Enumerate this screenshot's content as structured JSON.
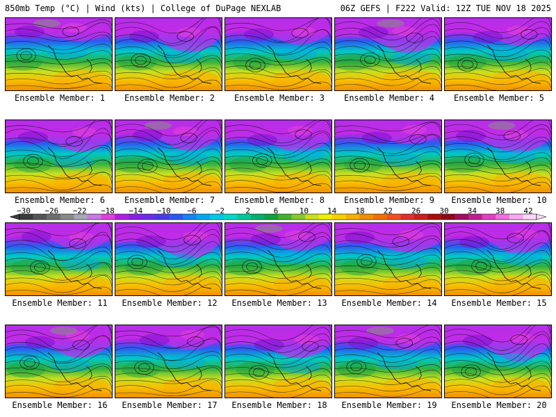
{
  "header": {
    "left": "850mb Temp (°C) | Wind (kts) | College of DuPage NEXLAB",
    "right": "06Z GEFS | F222 Valid: 12Z TUE NOV 18 2025"
  },
  "panels": [
    {
      "label": "Ensemble Member: 1"
    },
    {
      "label": "Ensemble Member: 2"
    },
    {
      "label": "Ensemble Member: 3"
    },
    {
      "label": "Ensemble Member: 4"
    },
    {
      "label": "Ensemble Member: 5"
    },
    {
      "label": "Ensemble Member: 6"
    },
    {
      "label": "Ensemble Member: 7"
    },
    {
      "label": "Ensemble Member: 8"
    },
    {
      "label": "Ensemble Member: 9"
    },
    {
      "label": "Ensemble Member: 10"
    },
    {
      "label": "Ensemble Member: 11"
    },
    {
      "label": "Ensemble Member: 12"
    },
    {
      "label": "Ensemble Member: 13"
    },
    {
      "label": "Ensemble Member: 14"
    },
    {
      "label": "Ensemble Member: 15"
    },
    {
      "label": "Ensemble Member: 16"
    },
    {
      "label": "Ensemble Member: 17"
    },
    {
      "label": "Ensemble Member: 18"
    },
    {
      "label": "Ensemble Member: 19"
    },
    {
      "label": "Ensemble Member: 20"
    }
  ],
  "colorbar": {
    "ticks": [
      "−30",
      "−26",
      "−22",
      "−18",
      "−14",
      "−10",
      "−6",
      "−2",
      "2",
      "6",
      "10",
      "14",
      "18",
      "22",
      "26",
      "30",
      "34",
      "38",
      "42"
    ],
    "colors": [
      "#3c3c3c",
      "#555555",
      "#6e6e6e",
      "#8a8a8a",
      "#a8a8b8",
      "#c878e0",
      "#e040e0",
      "#b020e0",
      "#8a20e6",
      "#6a2ee8",
      "#4a3ae8",
      "#2c5af0",
      "#1a82f0",
      "#00a8f0",
      "#00c8e8",
      "#00d8c8",
      "#00c89a",
      "#00b070",
      "#10a040",
      "#44b030",
      "#88c830",
      "#c8e020",
      "#f0f000",
      "#f8d000",
      "#f8b000",
      "#f09000",
      "#f07000",
      "#f05020",
      "#e03030",
      "#c82020",
      "#a81010",
      "#900818",
      "#a01060",
      "#c02090",
      "#e040c0",
      "#f070e0",
      "#f8a8f0",
      "#fcd8f8"
    ]
  }
}
